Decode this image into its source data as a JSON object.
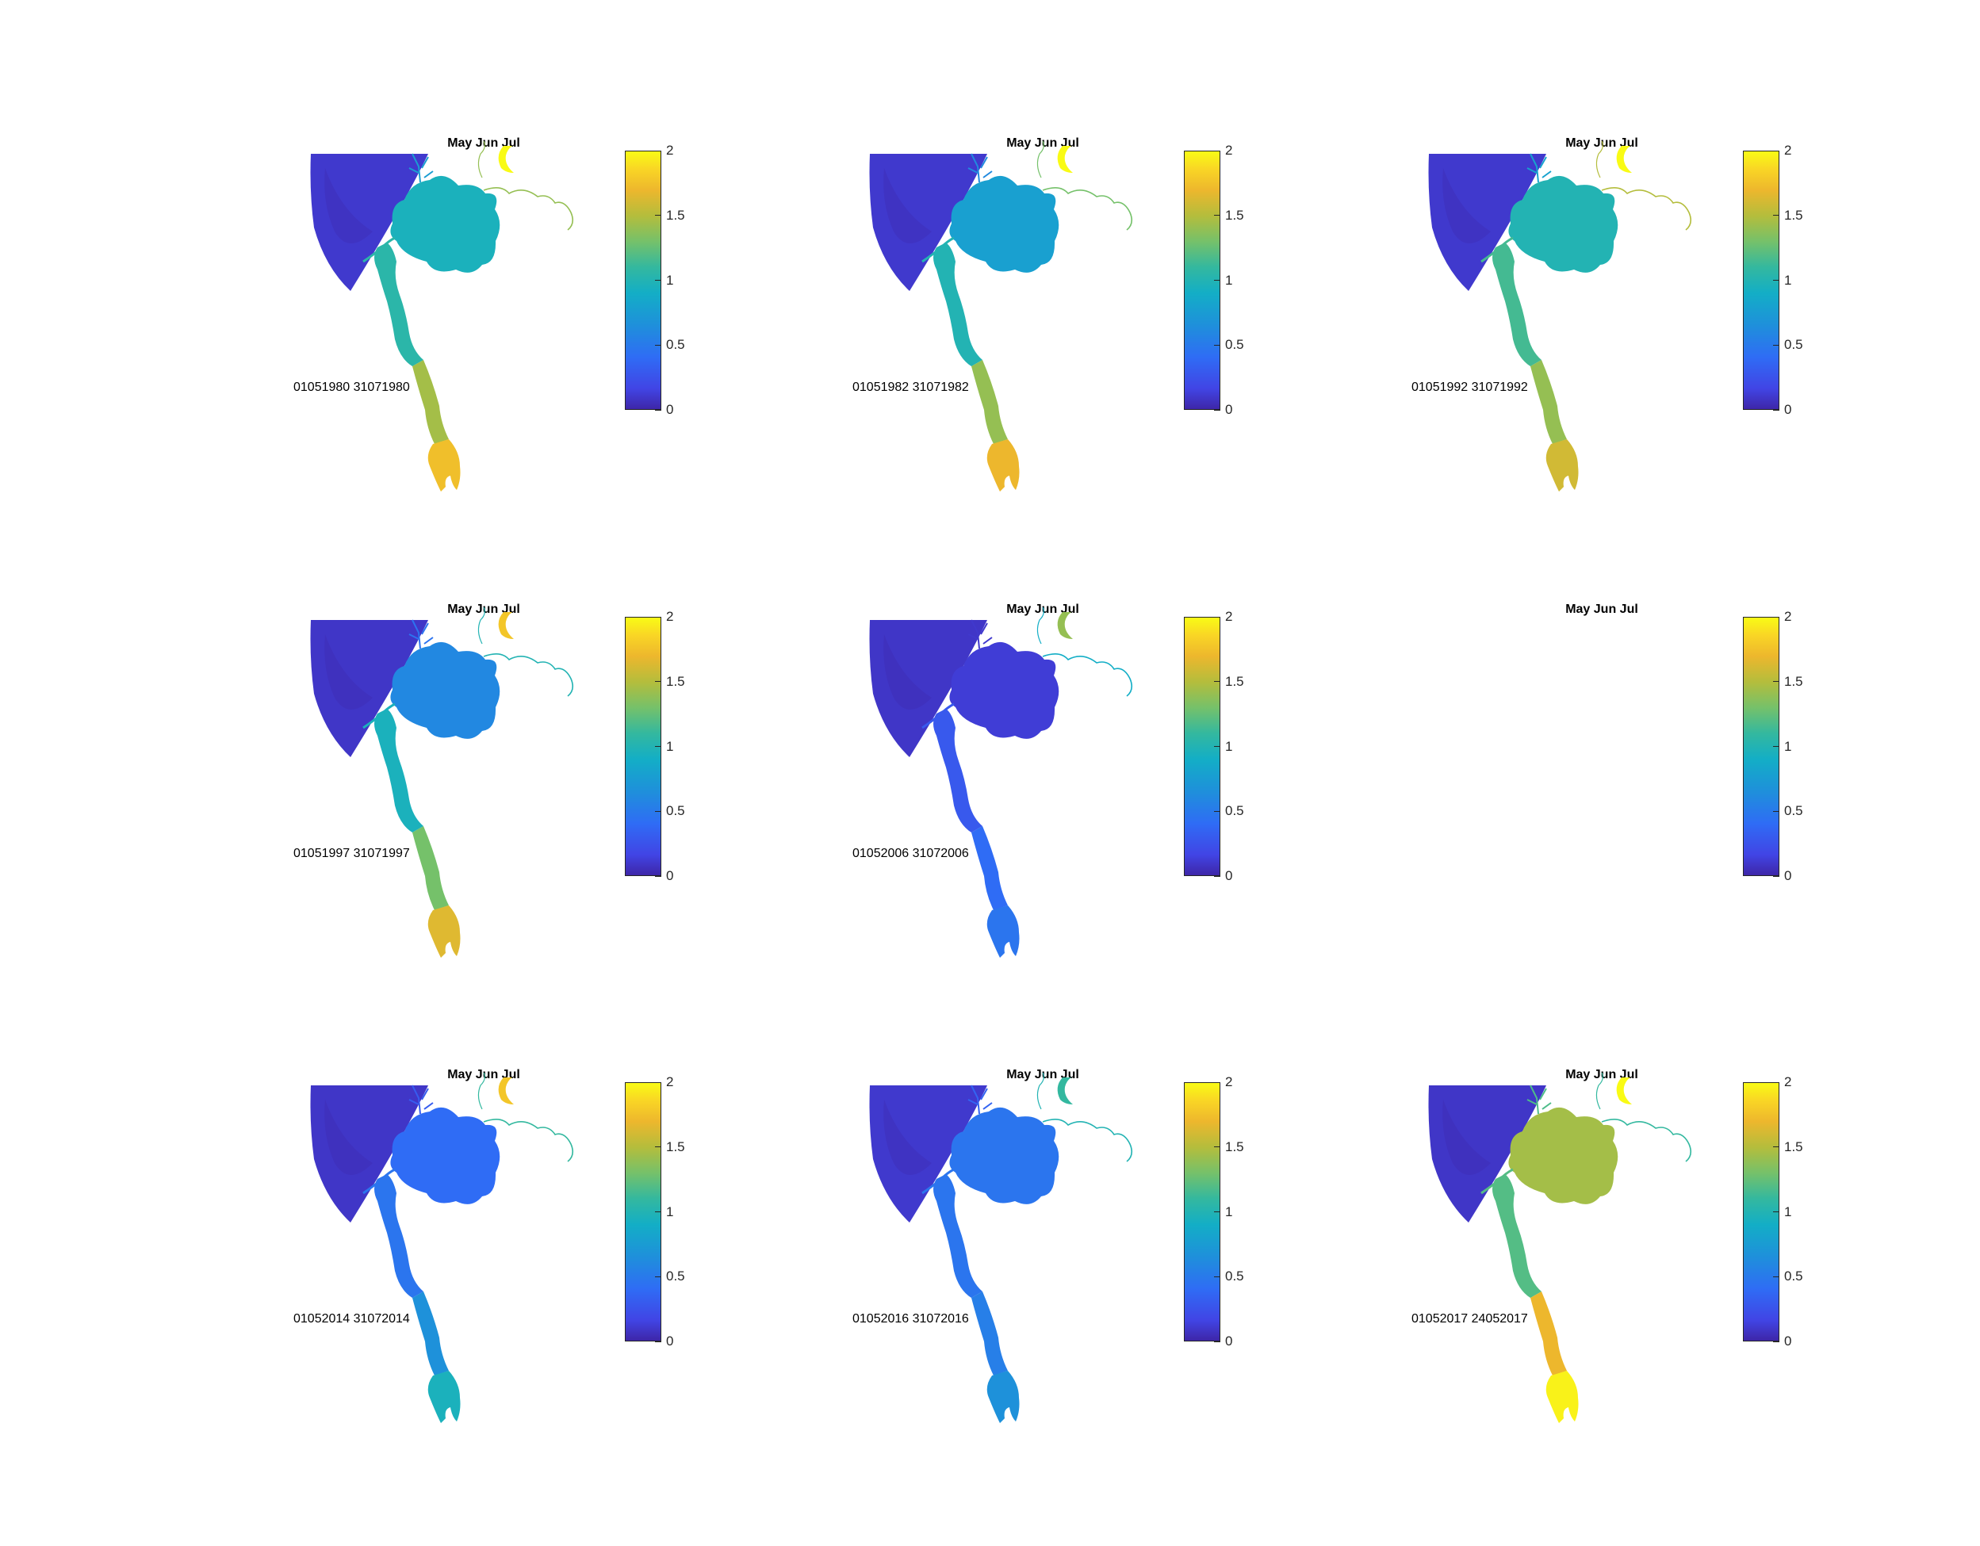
{
  "colormap": [
    "#3e26a8",
    "#4145e5",
    "#2f6cf5",
    "#1e91da",
    "#13aec6",
    "#33b89f",
    "#75c16a",
    "#b4bd3c",
    "#edb72d",
    "#f9d525",
    "#f9fb15"
  ],
  "colorbar": {
    "min": 0,
    "max": 2,
    "ticks": [
      "0",
      "0.5",
      "1",
      "1.5",
      "2"
    ]
  },
  "panels": [
    {
      "title": "May Jun Jul",
      "dates": "01051980 31071980",
      "has_map": true,
      "values": {
        "sea": 0.12,
        "lake": 0.85,
        "upper_river": 0.95,
        "lower_river": 1.35,
        "mouth": 1.65,
        "tributary": 1.3,
        "crescent": 2.0
      }
    },
    {
      "title": "May Jun Jul",
      "dates": "01051982 31071982",
      "has_map": true,
      "values": {
        "sea": 0.12,
        "lake": 0.7,
        "upper_river": 0.9,
        "lower_river": 1.3,
        "mouth": 1.6,
        "tributary": 1.2,
        "crescent": 2.0
      }
    },
    {
      "title": "May Jun Jul",
      "dates": "01051992 31071992",
      "has_map": true,
      "values": {
        "sea": 0.12,
        "lake": 0.9,
        "upper_river": 1.05,
        "lower_river": 1.3,
        "mouth": 1.5,
        "tributary": 1.4,
        "crescent": 2.0
      }
    },
    {
      "title": "May Jun Jul",
      "dates": "01051997 31071997",
      "has_map": true,
      "values": {
        "sea": 0.1,
        "lake": 0.55,
        "upper_river": 0.85,
        "lower_river": 1.2,
        "mouth": 1.55,
        "tributary": 0.9,
        "crescent": 1.7
      }
    },
    {
      "title": "May Jun Jul",
      "dates": "01052006 31072006",
      "has_map": true,
      "values": {
        "sea": 0.1,
        "lake": 0.15,
        "upper_river": 0.3,
        "lower_river": 0.4,
        "mouth": 0.45,
        "tributary": 0.8,
        "crescent": 1.3
      }
    },
    {
      "title": "May Jun Jul",
      "dates": "",
      "has_map": false,
      "values": {}
    },
    {
      "title": "May Jun Jul",
      "dates": "01052014 31072014",
      "has_map": true,
      "values": {
        "sea": 0.1,
        "lake": 0.4,
        "upper_river": 0.45,
        "lower_river": 0.6,
        "mouth": 0.85,
        "tributary": 1.0,
        "crescent": 1.7
      }
    },
    {
      "title": "May Jun Jul",
      "dates": "01052016 31072016",
      "has_map": true,
      "values": {
        "sea": 0.12,
        "lake": 0.45,
        "upper_river": 0.45,
        "lower_river": 0.5,
        "mouth": 0.6,
        "tributary": 0.9,
        "crescent": 1.0
      }
    },
    {
      "title": "May Jun Jul",
      "dates": "01052017 24052017",
      "has_map": true,
      "values": {
        "sea": 0.1,
        "lake": 1.35,
        "upper_river": 1.1,
        "lower_river": 1.6,
        "mouth": 1.95,
        "tributary": 1.0,
        "crescent": 2.0
      }
    }
  ]
}
